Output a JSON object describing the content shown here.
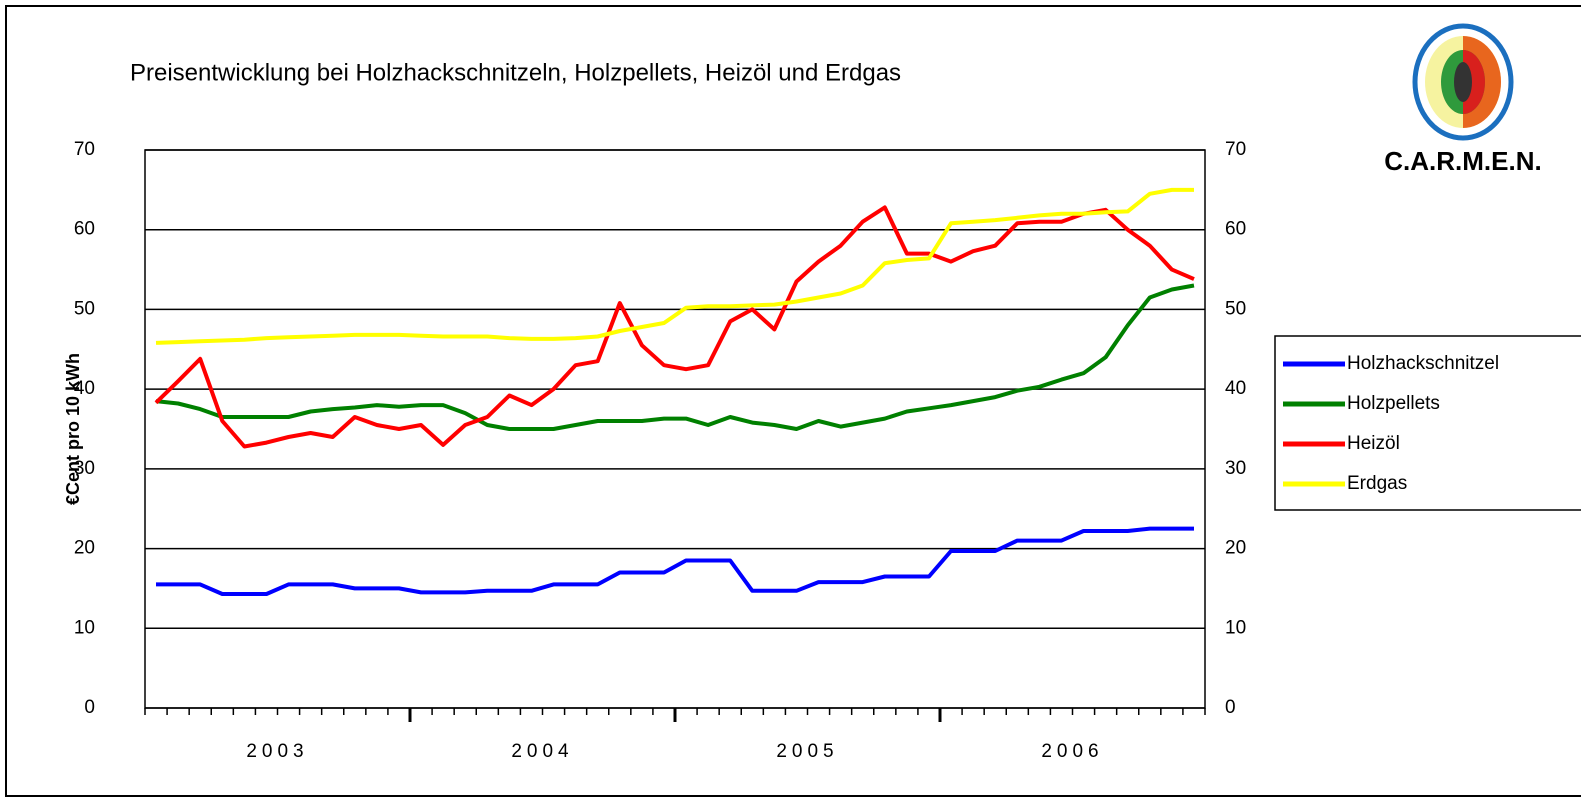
{
  "chart_data": {
    "type": "line",
    "title": "Preisentwicklung bei Holzhackschnitzeln, Holzpellets, Heizöl und Erdgas",
    "y_label": "€Cent pro 10 kWh",
    "logo": "C.A.R.M.E.N.",
    "years": [
      "2003",
      "2004",
      "2005",
      "2006"
    ],
    "ylim": [
      0,
      70
    ],
    "yticks": [
      0,
      10,
      20,
      30,
      40,
      50,
      60,
      70
    ],
    "y2lim": [
      0,
      70
    ],
    "y2ticks": [
      0,
      10,
      20,
      30,
      40,
      50,
      60,
      70
    ],
    "grid": true,
    "legend": "right",
    "series": [
      {
        "name": "Holzhackschnitzel",
        "color": "#0000ff",
        "values": [
          15.5,
          15.5,
          15.5,
          14.3,
          14.3,
          14.3,
          15.5,
          15.5,
          15.5,
          15,
          15,
          15,
          14.5,
          14.5,
          14.5,
          14.7,
          14.7,
          14.7,
          15.5,
          15.5,
          15.5,
          17,
          17,
          17,
          18.5,
          18.5,
          18.5,
          14.7,
          14.7,
          14.7,
          15.8,
          15.8,
          15.8,
          16.5,
          16.5,
          16.5,
          19.7,
          19.7,
          19.7,
          21,
          21,
          21,
          22.2,
          22.2,
          22.2,
          22.5,
          22.5,
          22.5
        ]
      },
      {
        "name": "Holzpellets",
        "color": "#008000",
        "values": [
          38.5,
          38.2,
          37.5,
          36.5,
          36.5,
          36.5,
          36.5,
          37.2,
          37.5,
          37.7,
          38,
          37.8,
          38,
          38,
          37,
          35.5,
          35,
          35,
          35,
          35.5,
          36,
          36,
          36,
          36.3,
          36.3,
          35.5,
          36.5,
          35.8,
          35.5,
          35,
          36,
          35.3,
          35.8,
          36.3,
          37.2,
          37.6,
          38,
          38.5,
          39,
          39.8,
          40.3,
          41.2,
          42,
          44,
          48,
          51.5,
          52.5,
          53
        ]
      },
      {
        "name": "Heizöl",
        "color": "#ff0000",
        "values": [
          38.3,
          41,
          43.8,
          36,
          32.8,
          33.3,
          34,
          34.5,
          34,
          36.5,
          35.5,
          35,
          35.5,
          33,
          35.5,
          36.5,
          39.2,
          38,
          40,
          43,
          43.5,
          50.8,
          45.5,
          43,
          42.5,
          43,
          48.5,
          50,
          47.5,
          53.5,
          56,
          58,
          61,
          62.8,
          57,
          57,
          56,
          57.3,
          58,
          60.8,
          61,
          61,
          62,
          62.5,
          60,
          58,
          55,
          53.8
        ]
      },
      {
        "name": "Erdgas",
        "color": "#ffff00",
        "values": [
          45.8,
          45.9,
          46,
          46.1,
          46.2,
          46.4,
          46.5,
          46.6,
          46.7,
          46.8,
          46.8,
          46.8,
          46.7,
          46.6,
          46.6,
          46.6,
          46.4,
          46.3,
          46.3,
          46.4,
          46.6,
          47.3,
          47.8,
          48.3,
          50.2,
          50.4,
          50.4,
          50.5,
          50.6,
          51,
          51.5,
          52,
          53,
          55.8,
          56.2,
          56.4,
          60.8,
          61,
          61.2,
          61.5,
          61.8,
          62,
          62,
          62.2,
          62.3,
          64.5,
          65,
          65
        ]
      }
    ]
  }
}
